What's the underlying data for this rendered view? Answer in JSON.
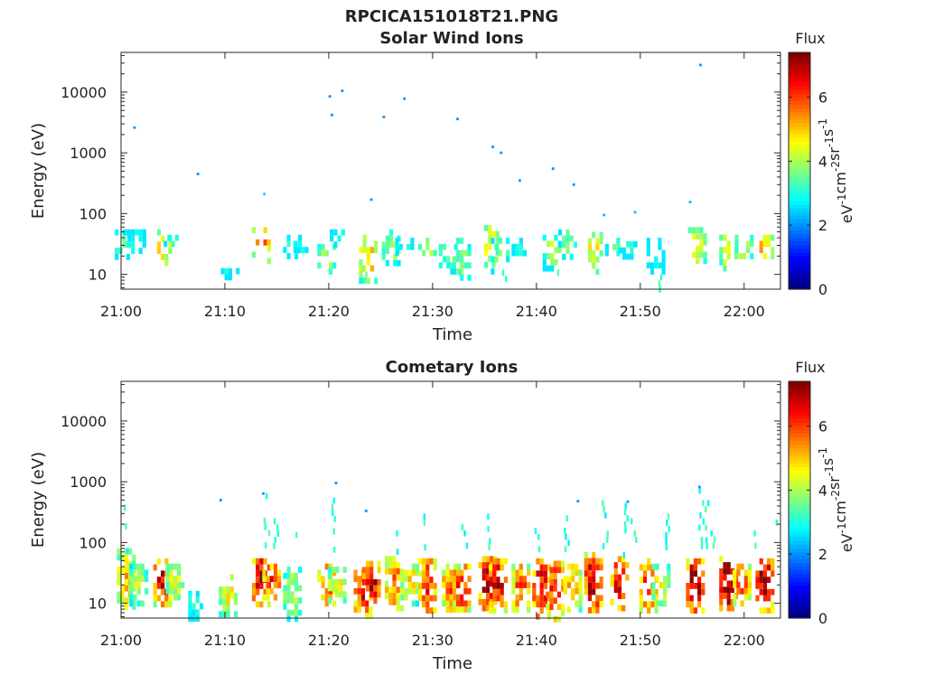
{
  "figure_title": "RPCICA151018T21.PNG",
  "colorbar": {
    "label": "Flux",
    "unit_parts": [
      "eV",
      "-1",
      "cm",
      "-2",
      "sr",
      "-1",
      "s",
      "-1"
    ],
    "range": [
      0,
      7.4
    ],
    "ticks": [
      0,
      2,
      4,
      6
    ],
    "colormap": "jet"
  },
  "chart_data": [
    {
      "type": "heatmap",
      "title": "Solar Wind Ions",
      "xlabel": "Time",
      "ylabel": "Energy (eV)",
      "y_scale": "log",
      "ylim": [
        5.7,
        45000
      ],
      "yticks": [
        10,
        100,
        1000,
        10000
      ],
      "ytick_labels": [
        "10",
        "100",
        "1000",
        "10000"
      ],
      "xlim_minutes": [
        0,
        63.5
      ],
      "xticks_minutes": [
        0,
        10,
        20,
        30,
        40,
        50,
        60
      ],
      "xtick_labels": [
        "21:00",
        "21:10",
        "21:20",
        "21:30",
        "21:40",
        "21:50",
        "22:00"
      ],
      "clusters": [
        {
          "t": 0.3,
          "emin": 18,
          "emax": 55,
          "peak": 3.5
        },
        {
          "t": 1.5,
          "emin": 22,
          "emax": 55,
          "peak": 3.2
        },
        {
          "t": 4.0,
          "emin": 15,
          "emax": 55,
          "peak": 4.8
        },
        {
          "t": 5.0,
          "emin": 30,
          "emax": 45,
          "peak": 3.2
        },
        {
          "t": 10.5,
          "emin": 10,
          "emax": 16,
          "peak": 3.0
        },
        {
          "t": 13.5,
          "emin": 17,
          "emax": 60,
          "peak": 5.5
        },
        {
          "t": 16.5,
          "emin": 18,
          "emax": 45,
          "peak": 3.2
        },
        {
          "t": 17.5,
          "emin": 25,
          "emax": 45,
          "peak": 3.3
        },
        {
          "t": 19.8,
          "emin": 12,
          "emax": 40,
          "peak": 4.2
        },
        {
          "t": 21.0,
          "emin": 28,
          "emax": 55,
          "peak": 3.2
        },
        {
          "t": 23.8,
          "emin": 8,
          "emax": 45,
          "peak": 5.0
        },
        {
          "t": 26.0,
          "emin": 15,
          "emax": 55,
          "peak": 4.0
        },
        {
          "t": 27.3,
          "emin": 20,
          "emax": 40,
          "peak": 3.0
        },
        {
          "t": 29.5,
          "emin": 20,
          "emax": 40,
          "peak": 4.2
        },
        {
          "t": 31.5,
          "emin": 12,
          "emax": 40,
          "peak": 3.6
        },
        {
          "t": 32.8,
          "emin": 8,
          "emax": 40,
          "peak": 3.8
        },
        {
          "t": 35.5,
          "emin": 15,
          "emax": 65,
          "peak": 4.6
        },
        {
          "t": 36.5,
          "emin": 12,
          "emax": 40,
          "peak": 3.8
        },
        {
          "t": 38.5,
          "emin": 20,
          "emax": 40,
          "peak": 3.0
        },
        {
          "t": 41.5,
          "emin": 14,
          "emax": 45,
          "peak": 4.0
        },
        {
          "t": 43.0,
          "emin": 20,
          "emax": 55,
          "peak": 3.6
        },
        {
          "t": 45.5,
          "emin": 12,
          "emax": 50,
          "peak": 4.6
        },
        {
          "t": 47.5,
          "emin": 20,
          "emax": 40,
          "peak": 3.2
        },
        {
          "t": 48.8,
          "emin": 20,
          "emax": 35,
          "peak": 3.0
        },
        {
          "t": 51.5,
          "emin": 11,
          "emax": 40,
          "peak": 3.0
        },
        {
          "t": 55.5,
          "emin": 15,
          "emax": 60,
          "peak": 4.4
        },
        {
          "t": 58.5,
          "emin": 14,
          "emax": 45,
          "peak": 4.6
        },
        {
          "t": 60.0,
          "emin": 18,
          "emax": 45,
          "peak": 4.2
        },
        {
          "t": 62.0,
          "emin": 18,
          "emax": 45,
          "peak": 5.0
        }
      ],
      "spikes": [
        {
          "t": 23.3,
          "emin": 6,
          "emax": 14,
          "peak": 3.0
        },
        {
          "t": 32.5,
          "emin": 6,
          "emax": 12,
          "peak": 2.9
        },
        {
          "t": 36.8,
          "emin": 6,
          "emax": 12,
          "peak": 2.9
        },
        {
          "t": 42.0,
          "emin": 7,
          "emax": 12,
          "peak": 2.9
        },
        {
          "t": 51.8,
          "emin": 6,
          "emax": 10,
          "peak": 3.0
        }
      ],
      "points": [
        {
          "t": 1.3,
          "e": 2600,
          "v": 2.0
        },
        {
          "t": 7.4,
          "e": 450,
          "v": 2.0
        },
        {
          "t": 13.8,
          "e": 210,
          "v": 2.5
        },
        {
          "t": 20.1,
          "e": 8500,
          "v": 2.0
        },
        {
          "t": 20.3,
          "e": 4200,
          "v": 2.0
        },
        {
          "t": 21.3,
          "e": 10500,
          "v": 2.0
        },
        {
          "t": 24.1,
          "e": 170,
          "v": 2.0
        },
        {
          "t": 25.3,
          "e": 3900,
          "v": 2.0
        },
        {
          "t": 27.3,
          "e": 7800,
          "v": 2.0
        },
        {
          "t": 32.4,
          "e": 3600,
          "v": 2.0
        },
        {
          "t": 35.8,
          "e": 1250,
          "v": 2.0
        },
        {
          "t": 36.6,
          "e": 1000,
          "v": 2.0
        },
        {
          "t": 38.4,
          "e": 350,
          "v": 2.0
        },
        {
          "t": 41.6,
          "e": 550,
          "v": 2.0
        },
        {
          "t": 43.6,
          "e": 300,
          "v": 2.0
        },
        {
          "t": 46.5,
          "e": 95,
          "v": 2.3
        },
        {
          "t": 49.5,
          "e": 105,
          "v": 2.3
        },
        {
          "t": 54.8,
          "e": 155,
          "v": 2.3
        },
        {
          "t": 55.8,
          "e": 28000,
          "v": 2.0
        }
      ]
    },
    {
      "type": "heatmap",
      "title": "Cometary Ions",
      "xlabel": "Time",
      "ylabel": "Energy (eV)",
      "y_scale": "log",
      "ylim": [
        5.7,
        45000
      ],
      "yticks": [
        10,
        100,
        1000,
        10000
      ],
      "ytick_labels": [
        "10",
        "100",
        "1000",
        "10000"
      ],
      "xlim_minutes": [
        0,
        63.5
      ],
      "xticks_minutes": [
        0,
        10,
        20,
        30,
        40,
        50,
        60
      ],
      "xtick_labels": [
        "21:00",
        "21:10",
        "21:20",
        "21:30",
        "21:40",
        "21:50",
        "22:00"
      ],
      "clusters": [
        {
          "t": 0.5,
          "emin": 8,
          "emax": 80,
          "peak": 5.0
        },
        {
          "t": 1.7,
          "emin": 10,
          "emax": 45,
          "peak": 4.2
        },
        {
          "t": 4.0,
          "emin": 10,
          "emax": 55,
          "peak": 6.6
        },
        {
          "t": 5.2,
          "emin": 12,
          "emax": 45,
          "peak": 4.4
        },
        {
          "t": 7.0,
          "emin": 6,
          "emax": 16,
          "peak": 3.0
        },
        {
          "t": 10.3,
          "emin": 6,
          "emax": 30,
          "peak": 4.6
        },
        {
          "t": 13.5,
          "emin": 10,
          "emax": 55,
          "peak": 7.2
        },
        {
          "t": 14.5,
          "emin": 12,
          "emax": 45,
          "peak": 6.2
        },
        {
          "t": 16.5,
          "emin": 6,
          "emax": 40,
          "peak": 4.2
        },
        {
          "t": 19.8,
          "emin": 8,
          "emax": 45,
          "peak": 6.0
        },
        {
          "t": 20.8,
          "emin": 10,
          "emax": 40,
          "peak": 4.6
        },
        {
          "t": 23.3,
          "emin": 6,
          "emax": 45,
          "peak": 6.4
        },
        {
          "t": 24.1,
          "emin": 10,
          "emax": 50,
          "peak": 6.8
        },
        {
          "t": 26.3,
          "emin": 8,
          "emax": 60,
          "peak": 5.6
        },
        {
          "t": 27.8,
          "emin": 10,
          "emax": 45,
          "peak": 4.8
        },
        {
          "t": 29.5,
          "emin": 7,
          "emax": 55,
          "peak": 6.2
        },
        {
          "t": 31.8,
          "emin": 8,
          "emax": 45,
          "peak": 5.8
        },
        {
          "t": 32.8,
          "emin": 8,
          "emax": 45,
          "peak": 6.4
        },
        {
          "t": 35.3,
          "emin": 8,
          "emax": 60,
          "peak": 6.8
        },
        {
          "t": 36.3,
          "emin": 8,
          "emax": 55,
          "peak": 6.6
        },
        {
          "t": 38.5,
          "emin": 7,
          "emax": 45,
          "peak": 5.8
        },
        {
          "t": 40.5,
          "emin": 6,
          "emax": 55,
          "peak": 6.6
        },
        {
          "t": 41.8,
          "emin": 6,
          "emax": 50,
          "peak": 6.2
        },
        {
          "t": 43.5,
          "emin": 8,
          "emax": 45,
          "peak": 5.2
        },
        {
          "t": 45.5,
          "emin": 8,
          "emax": 70,
          "peak": 6.8
        },
        {
          "t": 48.0,
          "emin": 8,
          "emax": 60,
          "peak": 6.4
        },
        {
          "t": 50.8,
          "emin": 8,
          "emax": 55,
          "peak": 6.0
        },
        {
          "t": 52.0,
          "emin": 10,
          "emax": 45,
          "peak": 4.4
        },
        {
          "t": 55.3,
          "emin": 8,
          "emax": 55,
          "peak": 7.0
        },
        {
          "t": 58.5,
          "emin": 8,
          "emax": 60,
          "peak": 7.2
        },
        {
          "t": 59.8,
          "emin": 10,
          "emax": 45,
          "peak": 5.6
        },
        {
          "t": 62.0,
          "emin": 8,
          "emax": 55,
          "peak": 7.0
        }
      ],
      "spikes": [
        {
          "t": 0.3,
          "emin": 80,
          "emax": 420,
          "peak": 2.9
        },
        {
          "t": 13.9,
          "emin": 80,
          "emax": 650,
          "peak": 2.9
        },
        {
          "t": 14.8,
          "emin": 80,
          "emax": 250,
          "peak": 2.9
        },
        {
          "t": 16.8,
          "emin": 80,
          "emax": 150,
          "peak": 2.9
        },
        {
          "t": 20.3,
          "emin": 80,
          "emax": 550,
          "peak": 2.9
        },
        {
          "t": 26.5,
          "emin": 70,
          "emax": 200,
          "peak": 2.9
        },
        {
          "t": 29.3,
          "emin": 80,
          "emax": 300,
          "peak": 2.9
        },
        {
          "t": 33.0,
          "emin": 80,
          "emax": 200,
          "peak": 2.9
        },
        {
          "t": 35.5,
          "emin": 80,
          "emax": 300,
          "peak": 2.9
        },
        {
          "t": 40.0,
          "emin": 80,
          "emax": 220,
          "peak": 2.9
        },
        {
          "t": 42.8,
          "emin": 70,
          "emax": 280,
          "peak": 2.9
        },
        {
          "t": 46.5,
          "emin": 80,
          "emax": 500,
          "peak": 2.9
        },
        {
          "t": 48.5,
          "emin": 60,
          "emax": 450,
          "peak": 2.9
        },
        {
          "t": 49.3,
          "emin": 60,
          "emax": 250,
          "peak": 2.9
        },
        {
          "t": 52.5,
          "emin": 80,
          "emax": 300,
          "peak": 2.9
        },
        {
          "t": 55.8,
          "emin": 80,
          "emax": 800,
          "peak": 2.9
        },
        {
          "t": 56.2,
          "emin": 80,
          "emax": 500,
          "peak": 2.9
        },
        {
          "t": 57.0,
          "emin": 80,
          "emax": 200,
          "peak": 2.9
        },
        {
          "t": 60.8,
          "emin": 80,
          "emax": 200,
          "peak": 2.9
        },
        {
          "t": 62.8,
          "emin": 150,
          "emax": 380,
          "peak": 2.9
        }
      ],
      "points": [
        {
          "t": 9.6,
          "e": 500,
          "v": 2.0
        },
        {
          "t": 20.7,
          "e": 950,
          "v": 2.0
        },
        {
          "t": 23.6,
          "e": 330,
          "v": 2.0
        },
        {
          "t": 13.7,
          "e": 640,
          "v": 2.0
        },
        {
          "t": 44.0,
          "e": 480,
          "v": 2.0
        },
        {
          "t": 48.8,
          "e": 470,
          "v": 2.0
        },
        {
          "t": 55.7,
          "e": 820,
          "v": 2.0
        }
      ]
    }
  ]
}
